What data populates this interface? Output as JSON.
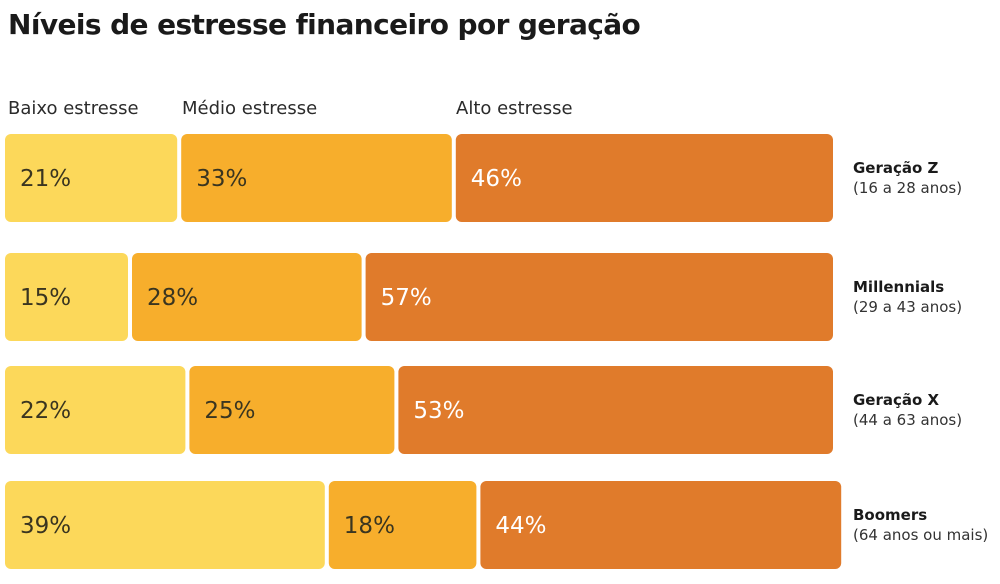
{
  "chart_data": {
    "type": "bar",
    "stacked": true,
    "orientation": "horizontal",
    "title": "Níveis de estresse financeiro por geração",
    "legend_placement": "top",
    "series": [
      {
        "name": "Baixo estresse",
        "color": "#fcd85a",
        "label_color": "#3a3520",
        "values": [
          21,
          15,
          22,
          39
        ],
        "labels": [
          "21%",
          "15%",
          "22%",
          "39%"
        ]
      },
      {
        "name": "Médio estresse",
        "color": "#f7ae2c",
        "label_color": "#3a3520",
        "values": [
          33,
          28,
          25,
          18
        ],
        "labels": [
          "33%",
          "28%",
          "25%",
          "18%"
        ]
      },
      {
        "name": "Alto estresse",
        "color": "#e07b2b",
        "label_color": "#ffffff",
        "values": [
          46,
          57,
          53,
          44
        ],
        "labels": [
          "46%",
          "57%",
          "53%",
          "44%"
        ]
      }
    ],
    "categories": [
      {
        "name": "Geração Z",
        "sub": "(16 a 28 anos)"
      },
      {
        "name": "Millennials",
        "sub": "(29 a 43 anos)"
      },
      {
        "name": "Geração X",
        "sub": "(44 a 63 anos)"
      },
      {
        "name": "Boomers",
        "sub": "(64 anos ou mais)"
      }
    ],
    "xlim": [
      0,
      100
    ],
    "grid": false
  }
}
